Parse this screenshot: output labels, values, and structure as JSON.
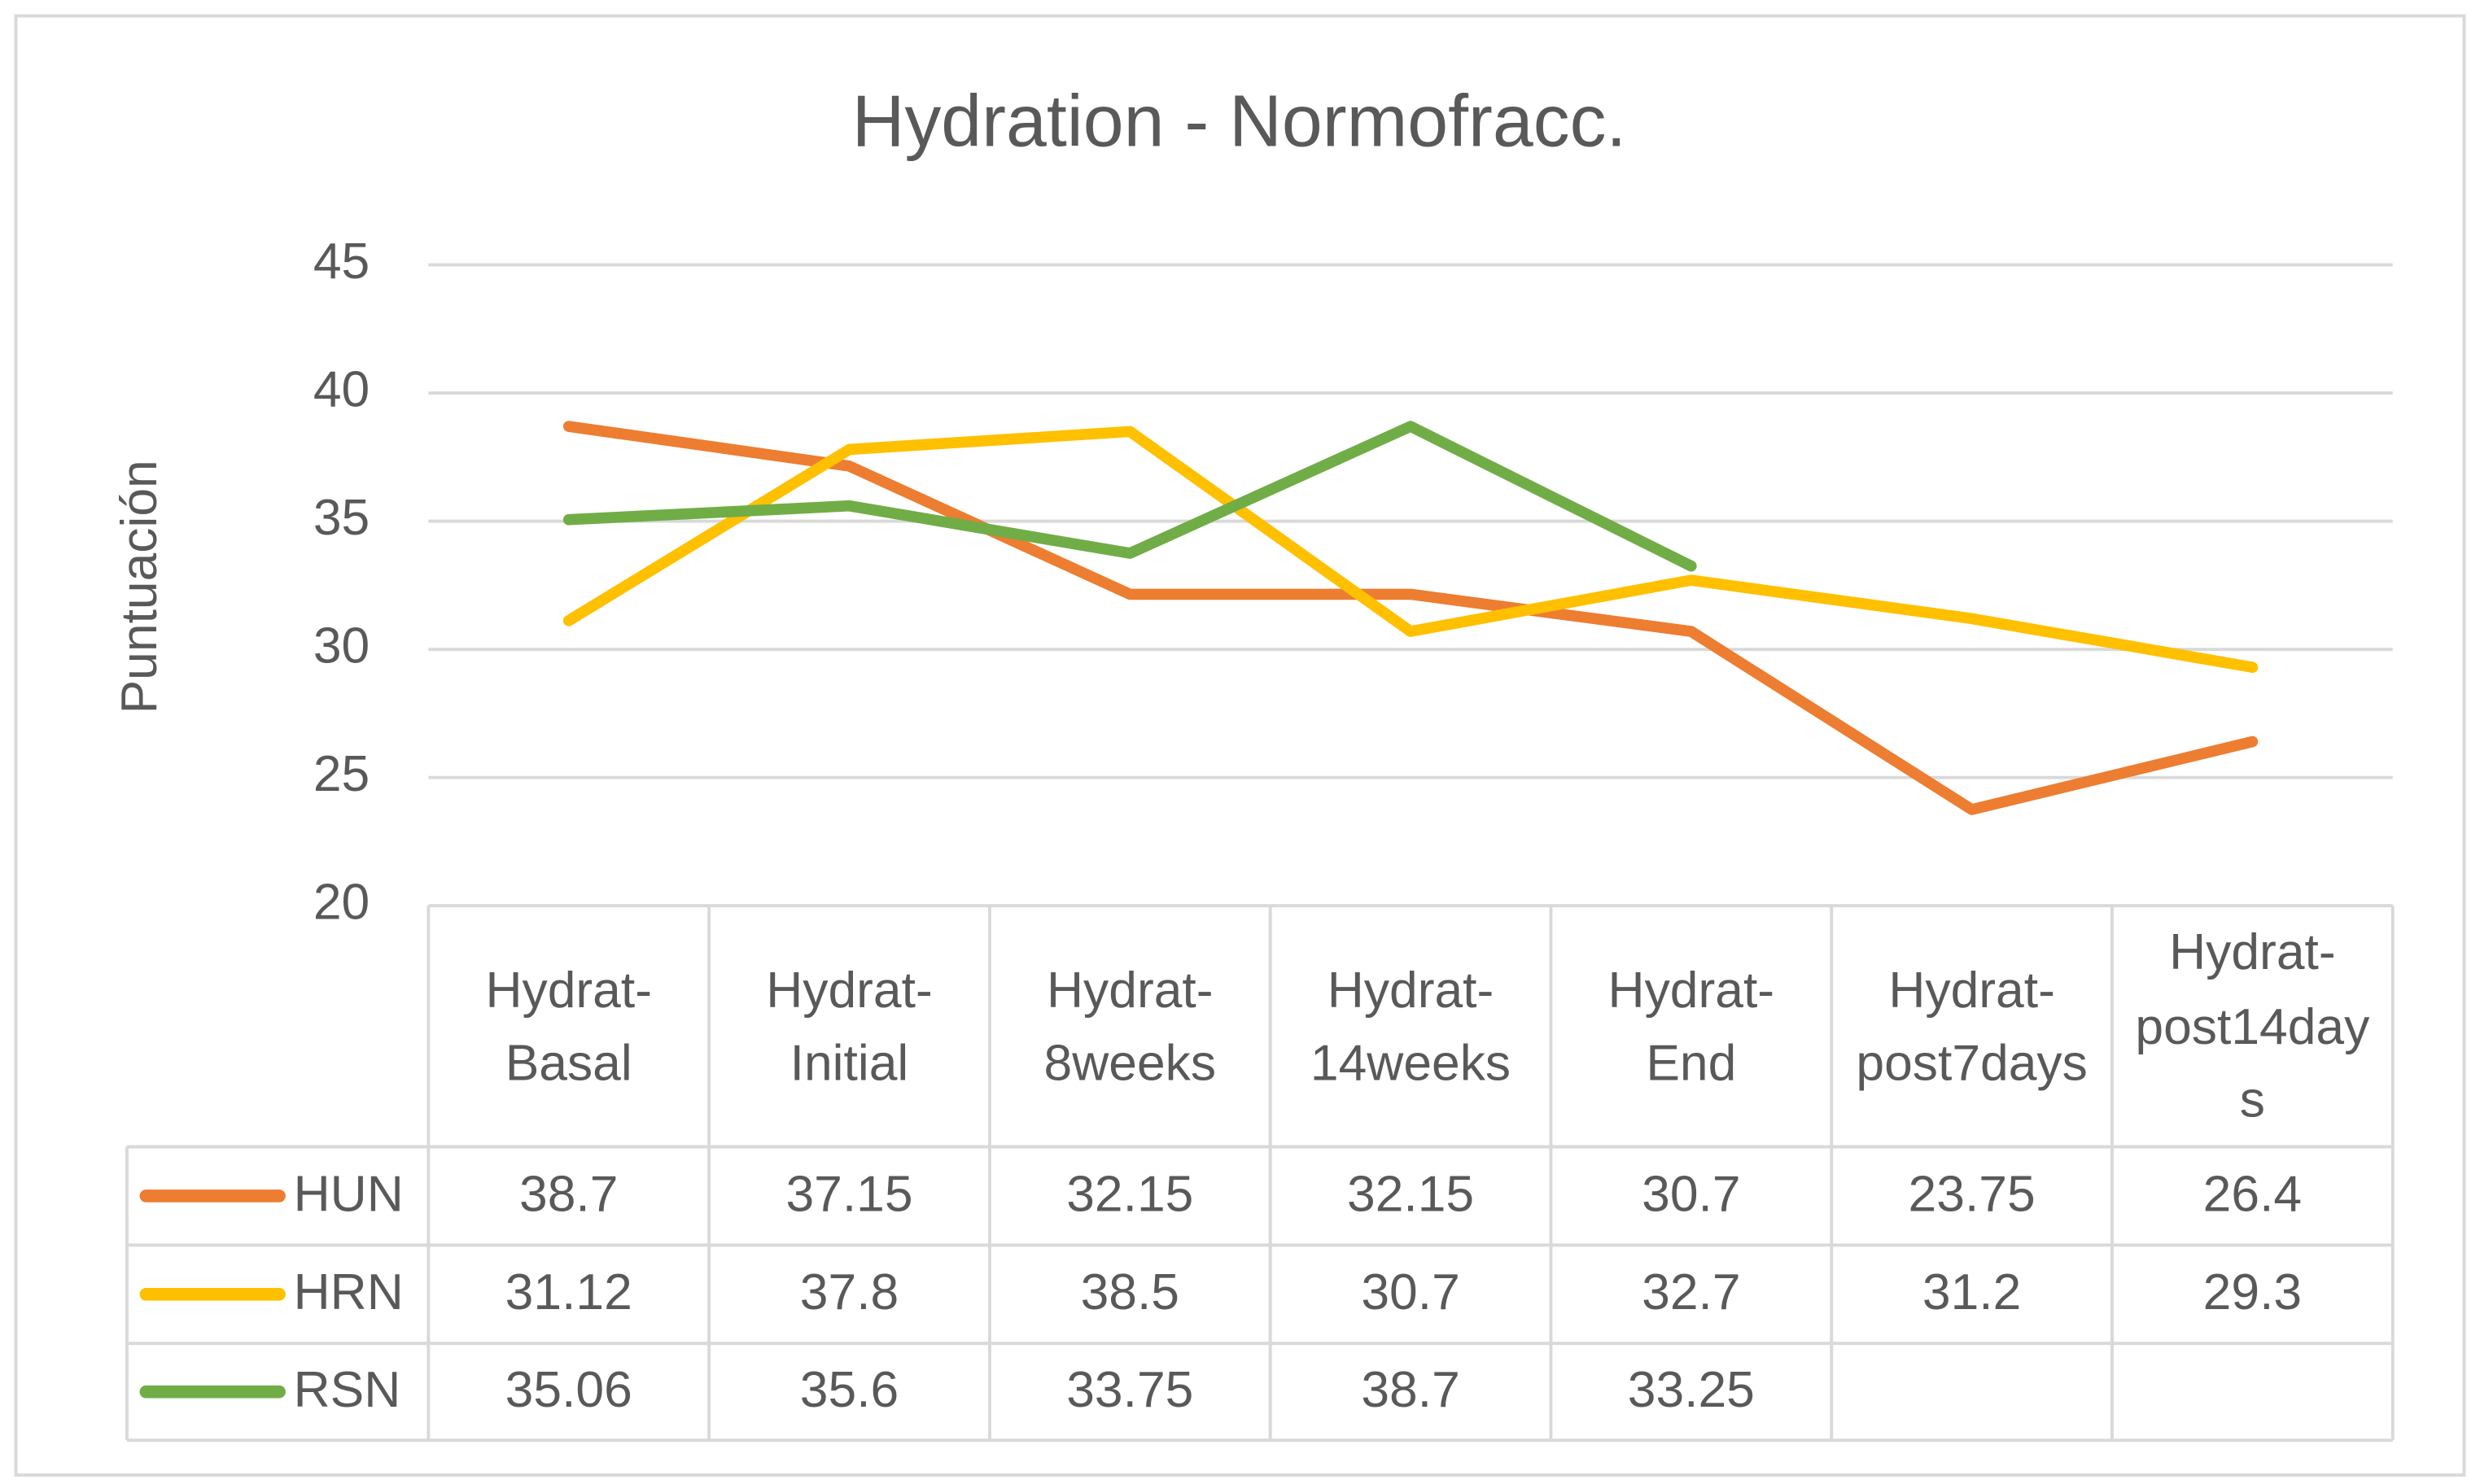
{
  "chart_data": {
    "type": "line",
    "title": "Hydration - Normofracc.",
    "y_label": "Puntuación",
    "categories": [
      "Hydrat-Basal",
      "Hydrat-Initial",
      "Hydrat-8weeks",
      "Hydrat-14weeks",
      "Hydrat-End",
      "Hydrat-post7days",
      "Hydrat-post14days"
    ],
    "series": [
      {
        "name": "HUN",
        "color": "#ed7d31",
        "values": [
          38.7,
          37.15,
          32.15,
          32.15,
          30.7,
          23.75,
          26.4
        ]
      },
      {
        "name": "HRN",
        "color": "#ffc000",
        "values": [
          31.12,
          37.8,
          38.5,
          30.7,
          32.7,
          31.2,
          29.3
        ]
      },
      {
        "name": "RSN",
        "color": "#70ad47",
        "values": [
          35.06,
          35.6,
          33.75,
          38.7,
          33.25,
          null,
          null
        ]
      }
    ],
    "ylim": [
      20,
      45
    ],
    "yticks": [
      20,
      25,
      30,
      35,
      40,
      45
    ],
    "grid": true
  }
}
